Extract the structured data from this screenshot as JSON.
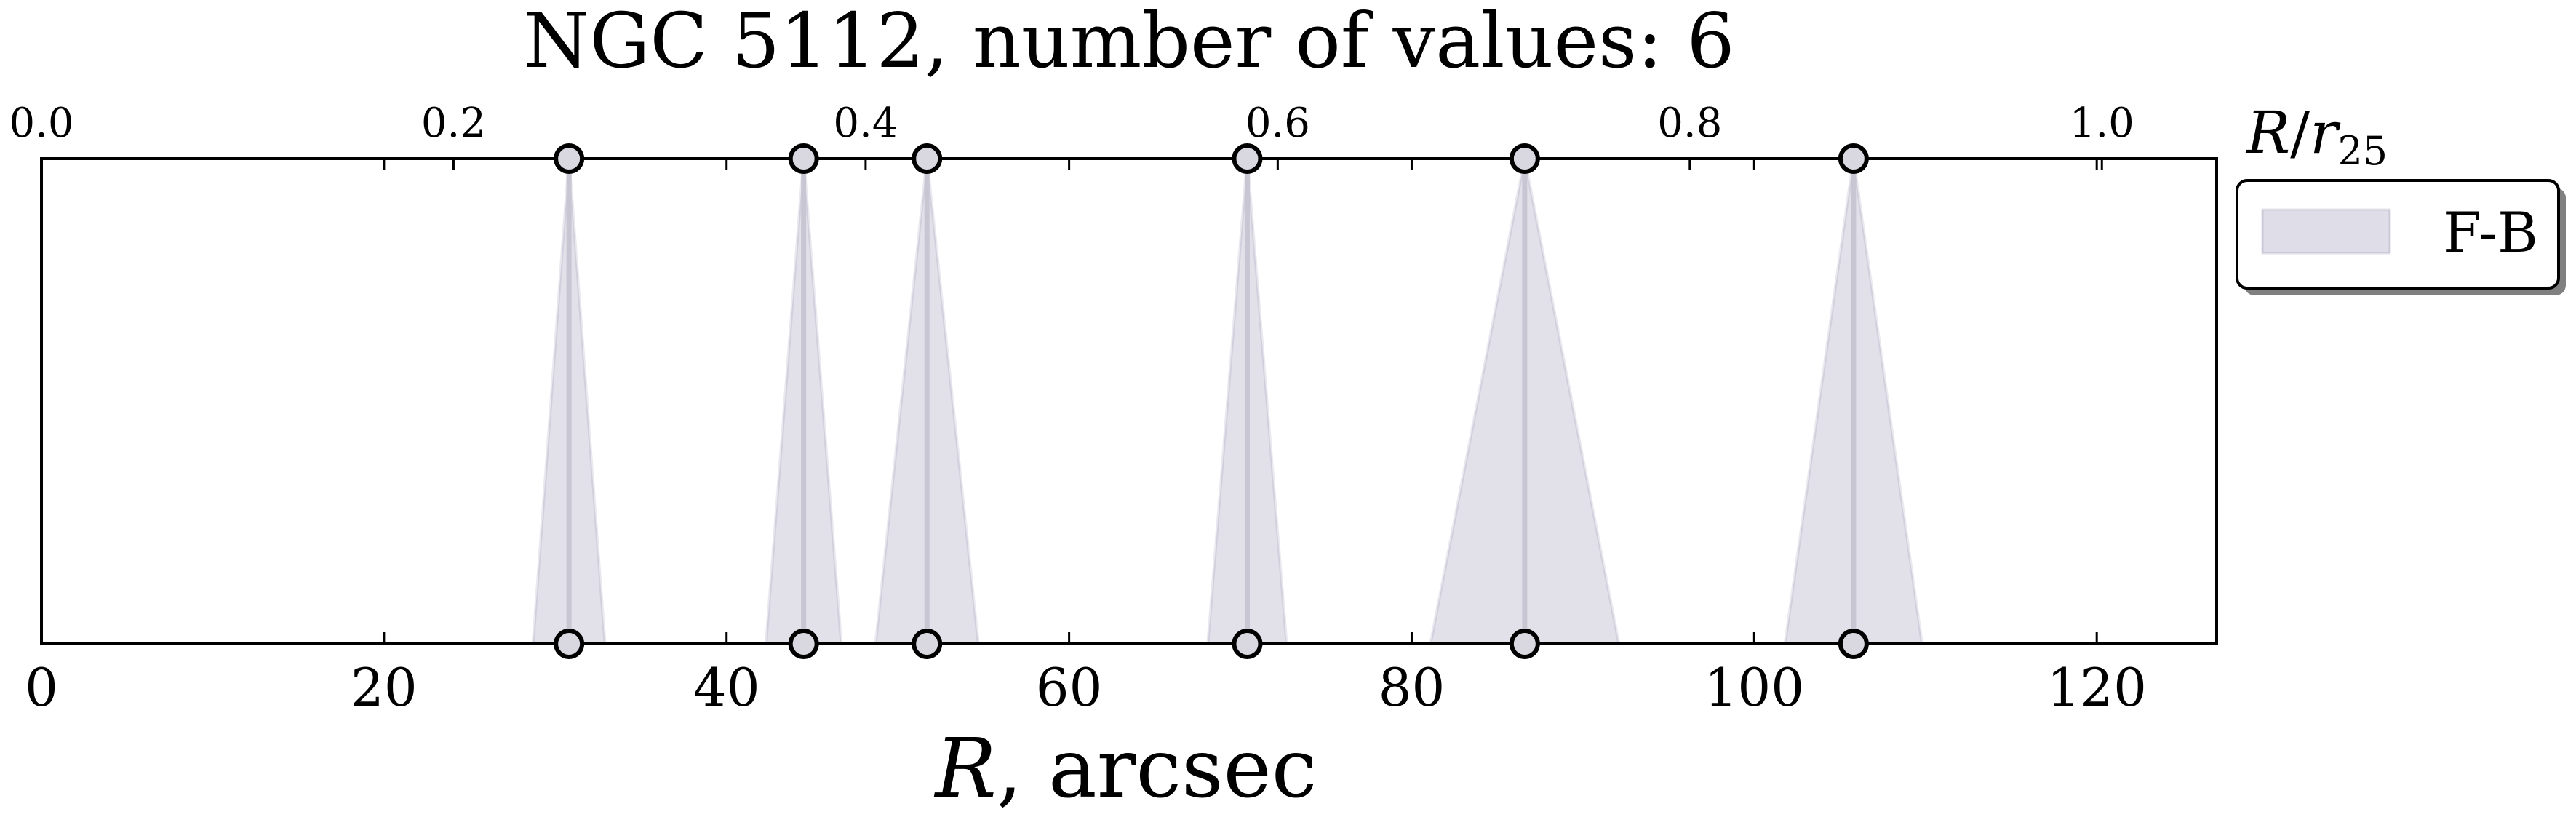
{
  "chart_data": {
    "type": "scatter",
    "title": "NGC 5112, number of values: 6",
    "xlabel": "R, arcsec",
    "xlabel_parts": {
      "var": "R",
      "unit": ", arcsec"
    },
    "xlim": [
      0,
      127
    ],
    "xticks": [
      0,
      20,
      40,
      60,
      80,
      100,
      120
    ],
    "secondary_xlabel": "R/r25",
    "secondary_xlabel_parts": {
      "var1": "R",
      "sep": "/",
      "var2": "r",
      "sub": "25"
    },
    "secondary_xticks": [
      "0.0",
      "0.2",
      "0.4",
      "0.6",
      "0.8",
      "1.0"
    ],
    "secondary_scale_arcsec_per_unit": 120.3,
    "ylim": [
      0,
      1
    ],
    "grid": false,
    "legend": {
      "position": "outside-right",
      "entries": [
        "F-B"
      ]
    },
    "series": [
      {
        "name": "F-B",
        "color": "#8c86a8",
        "points": [
          {
            "x": 30.8,
            "halfwidth": 2.1
          },
          {
            "x": 44.5,
            "halfwidth": 2.2
          },
          {
            "x": 51.7,
            "halfwidth": 3.0
          },
          {
            "x": 70.4,
            "halfwidth": 2.3
          },
          {
            "x": 86.6,
            "halfwidth": 5.5
          },
          {
            "x": 105.8,
            "halfwidth": 4.0
          }
        ]
      }
    ]
  }
}
